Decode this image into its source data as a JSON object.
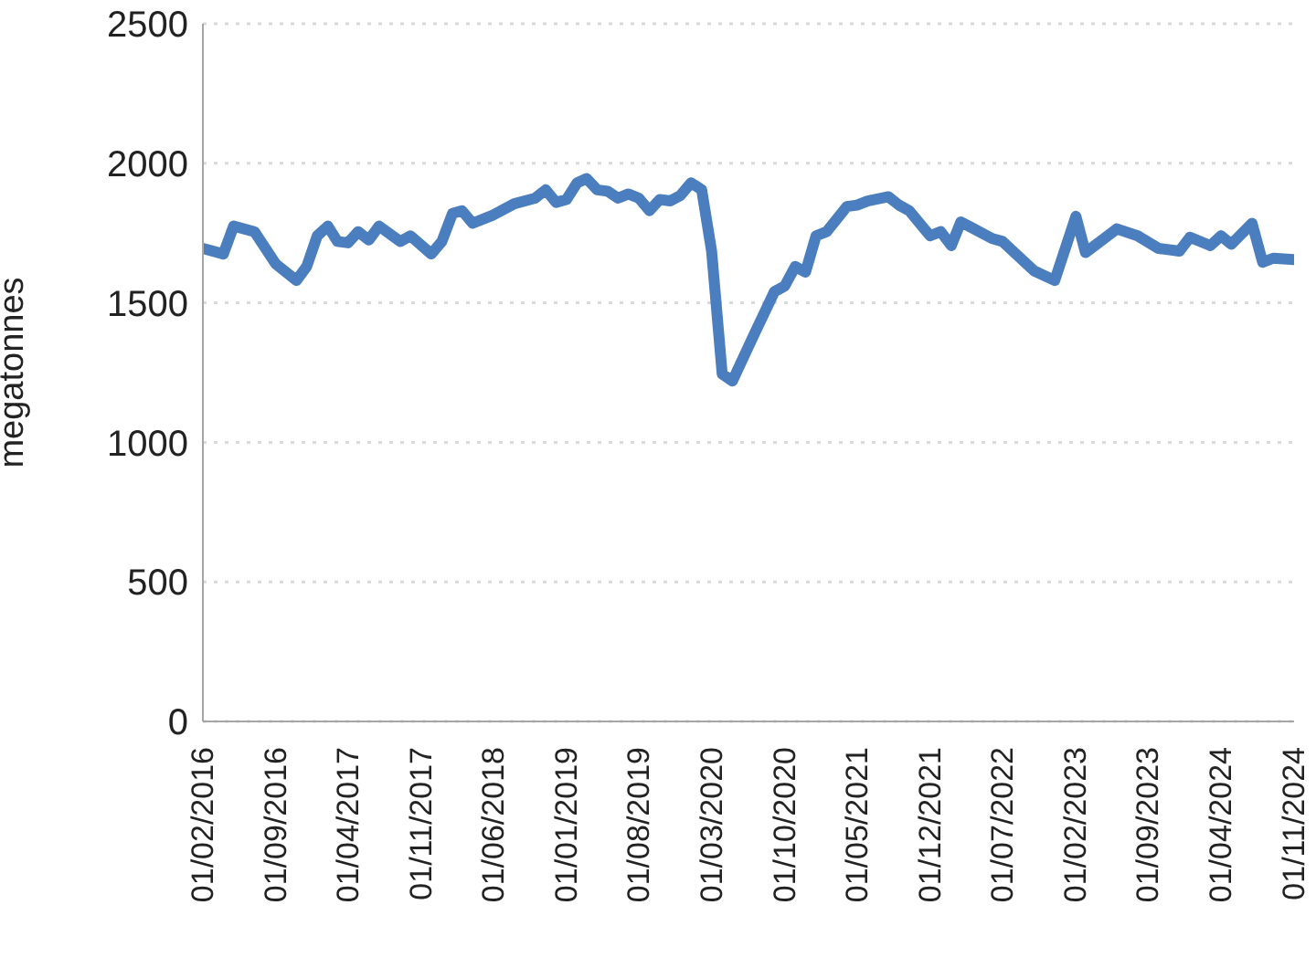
{
  "chart_data": {
    "type": "line",
    "ylabel": "megatonnes",
    "x": [
      "2016-02",
      "2016-04",
      "2016-05",
      "2016-07",
      "2016-09",
      "2016-11",
      "2016-12",
      "2017-01",
      "2017-02",
      "2017-03",
      "2017-04",
      "2017-05",
      "2017-06",
      "2017-07",
      "2017-09",
      "2017-10",
      "2017-12",
      "2018-01",
      "2018-02",
      "2018-03",
      "2018-04",
      "2018-06",
      "2018-08",
      "2018-10",
      "2018-11",
      "2018-12",
      "2019-01",
      "2019-02",
      "2019-03",
      "2019-04",
      "2019-05",
      "2019-06",
      "2019-07",
      "2019-08",
      "2019-09",
      "2019-10",
      "2019-11",
      "2019-12",
      "2020-01",
      "2020-02",
      "2020-03",
      "2020-04",
      "2020-05",
      "2020-07",
      "2020-09",
      "2020-10",
      "2020-11",
      "2020-12",
      "2021-01",
      "2021-02",
      "2021-04",
      "2021-05",
      "2021-06",
      "2021-08",
      "2021-09",
      "2021-10",
      "2021-12",
      "2022-01",
      "2022-02",
      "2022-03",
      "2022-04",
      "2022-06",
      "2022-07",
      "2022-10",
      "2022-12",
      "2023-02",
      "2023-03",
      "2023-06",
      "2023-08",
      "2023-10",
      "2023-12",
      "2024-01",
      "2024-03",
      "2024-04",
      "2024-05",
      "2024-07",
      "2024-08",
      "2024-09",
      "2024-11"
    ],
    "series": [
      {
        "color": "#4a7ebf",
        "values": [
          1695,
          1675,
          1775,
          1755,
          1640,
          1580,
          1630,
          1740,
          1775,
          1720,
          1715,
          1755,
          1725,
          1775,
          1720,
          1740,
          1675,
          1720,
          1820,
          1830,
          1785,
          1815,
          1855,
          1875,
          1905,
          1860,
          1870,
          1930,
          1945,
          1905,
          1900,
          1875,
          1890,
          1875,
          1830,
          1870,
          1865,
          1885,
          1930,
          1905,
          1685,
          1245,
          1220,
          1380,
          1540,
          1560,
          1630,
          1610,
          1740,
          1755,
          1845,
          1850,
          1865,
          1880,
          1850,
          1830,
          1740,
          1755,
          1705,
          1790,
          1770,
          1730,
          1720,
          1615,
          1580,
          1810,
          1680,
          1765,
          1740,
          1695,
          1685,
          1735,
          1705,
          1740,
          1710,
          1785,
          1645,
          1660,
          1655
        ]
      }
    ],
    "xlim": [
      "2016-02",
      "2024-11"
    ],
    "xticks": [
      {
        "value": "2016-02",
        "label": "01/02/2016"
      },
      {
        "value": "2016-09",
        "label": "01/09/2016"
      },
      {
        "value": "2017-04",
        "label": "01/04/2017"
      },
      {
        "value": "2017-11",
        "label": "01/11/2017"
      },
      {
        "value": "2018-06",
        "label": "01/06/2018"
      },
      {
        "value": "2019-01",
        "label": "01/01/2019"
      },
      {
        "value": "2019-08",
        "label": "01/08/2019"
      },
      {
        "value": "2020-03",
        "label": "01/03/2020"
      },
      {
        "value": "2020-10",
        "label": "01/10/2020"
      },
      {
        "value": "2021-05",
        "label": "01/05/2021"
      },
      {
        "value": "2021-12",
        "label": "01/12/2021"
      },
      {
        "value": "2022-07",
        "label": "01/07/2022"
      },
      {
        "value": "2023-02",
        "label": "01/02/2023"
      },
      {
        "value": "2023-09",
        "label": "01/09/2023"
      },
      {
        "value": "2024-04",
        "label": "01/04/2024"
      },
      {
        "value": "2024-11",
        "label": "01/11/2024"
      }
    ],
    "ylim": [
      0,
      2500
    ],
    "yticks": [
      0,
      500,
      1000,
      1500,
      2000,
      2500
    ],
    "grid": "y",
    "marker": "none",
    "line_style": "solid"
  }
}
